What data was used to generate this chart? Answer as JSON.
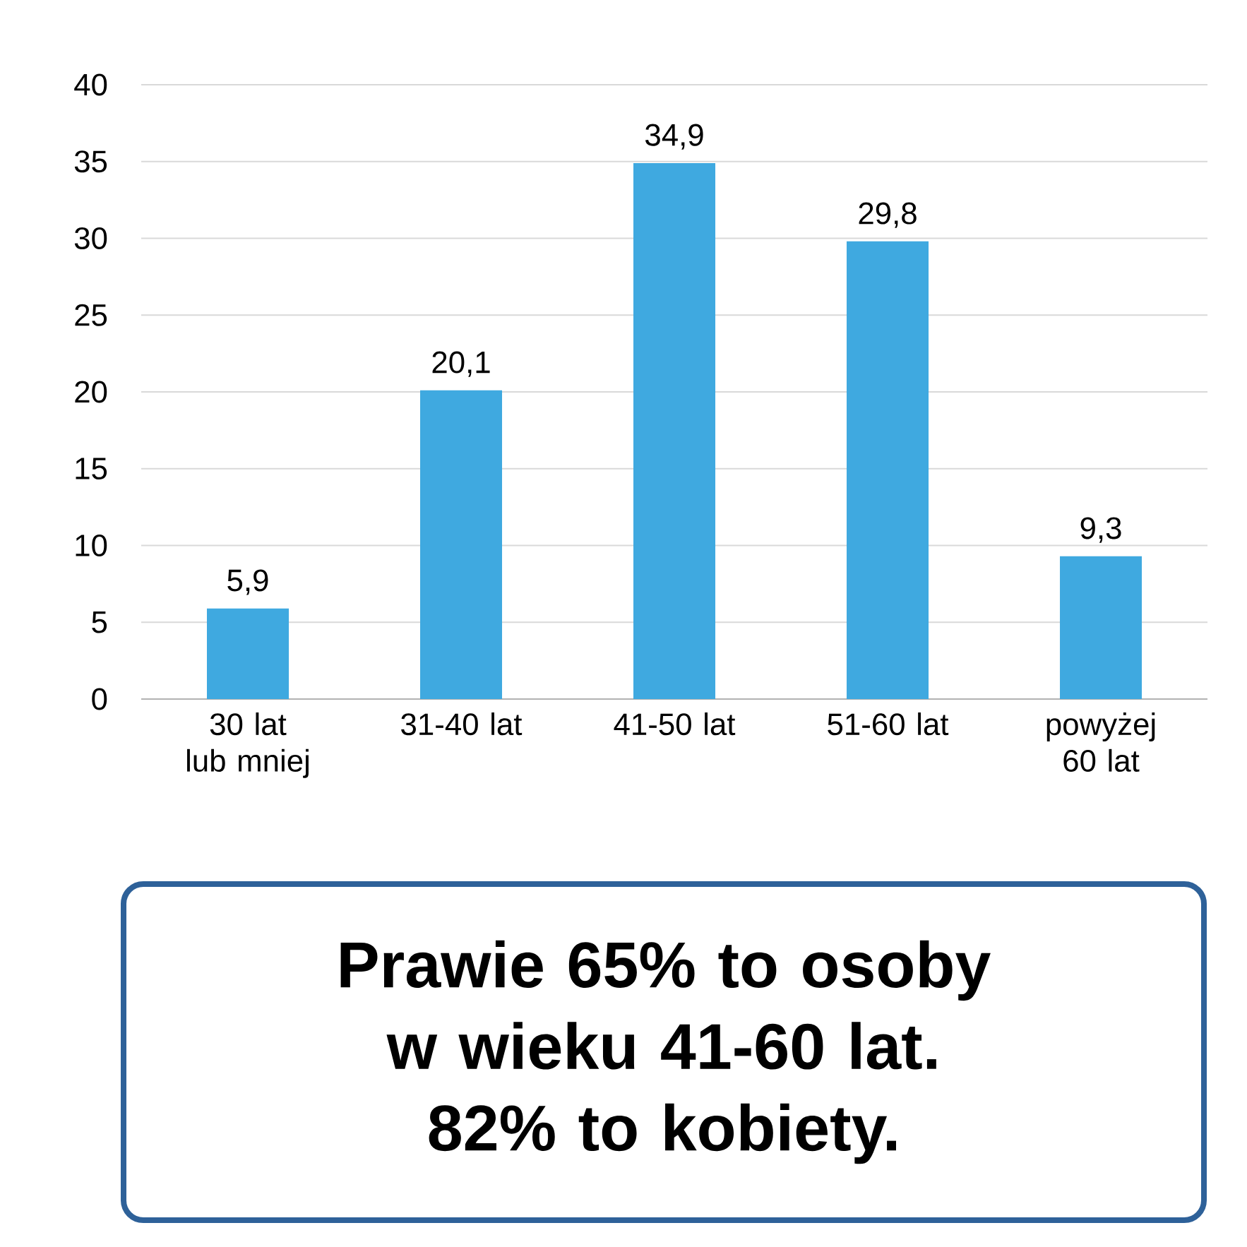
{
  "chart_data": {
    "type": "bar",
    "categories": [
      "30 lat lub mniej",
      "31-40 lat",
      "41-50 lat",
      "51-60 lat",
      "powyżej 60 lat"
    ],
    "values": [
      5.9,
      20.1,
      34.9,
      29.8,
      9.3
    ],
    "value_labels": [
      "5,9",
      "20,1",
      "34,9",
      "29,8",
      "9,3"
    ],
    "color": "#3fa9e0",
    "ylim": [
      0,
      40
    ],
    "yticks": [
      0,
      5,
      10,
      15,
      20,
      25,
      30,
      35,
      40
    ],
    "grid": "y",
    "annotations": [
      "Prawie 65% to osoby w wieku 41-60 lat.",
      "82% to kobiety."
    ]
  }
}
